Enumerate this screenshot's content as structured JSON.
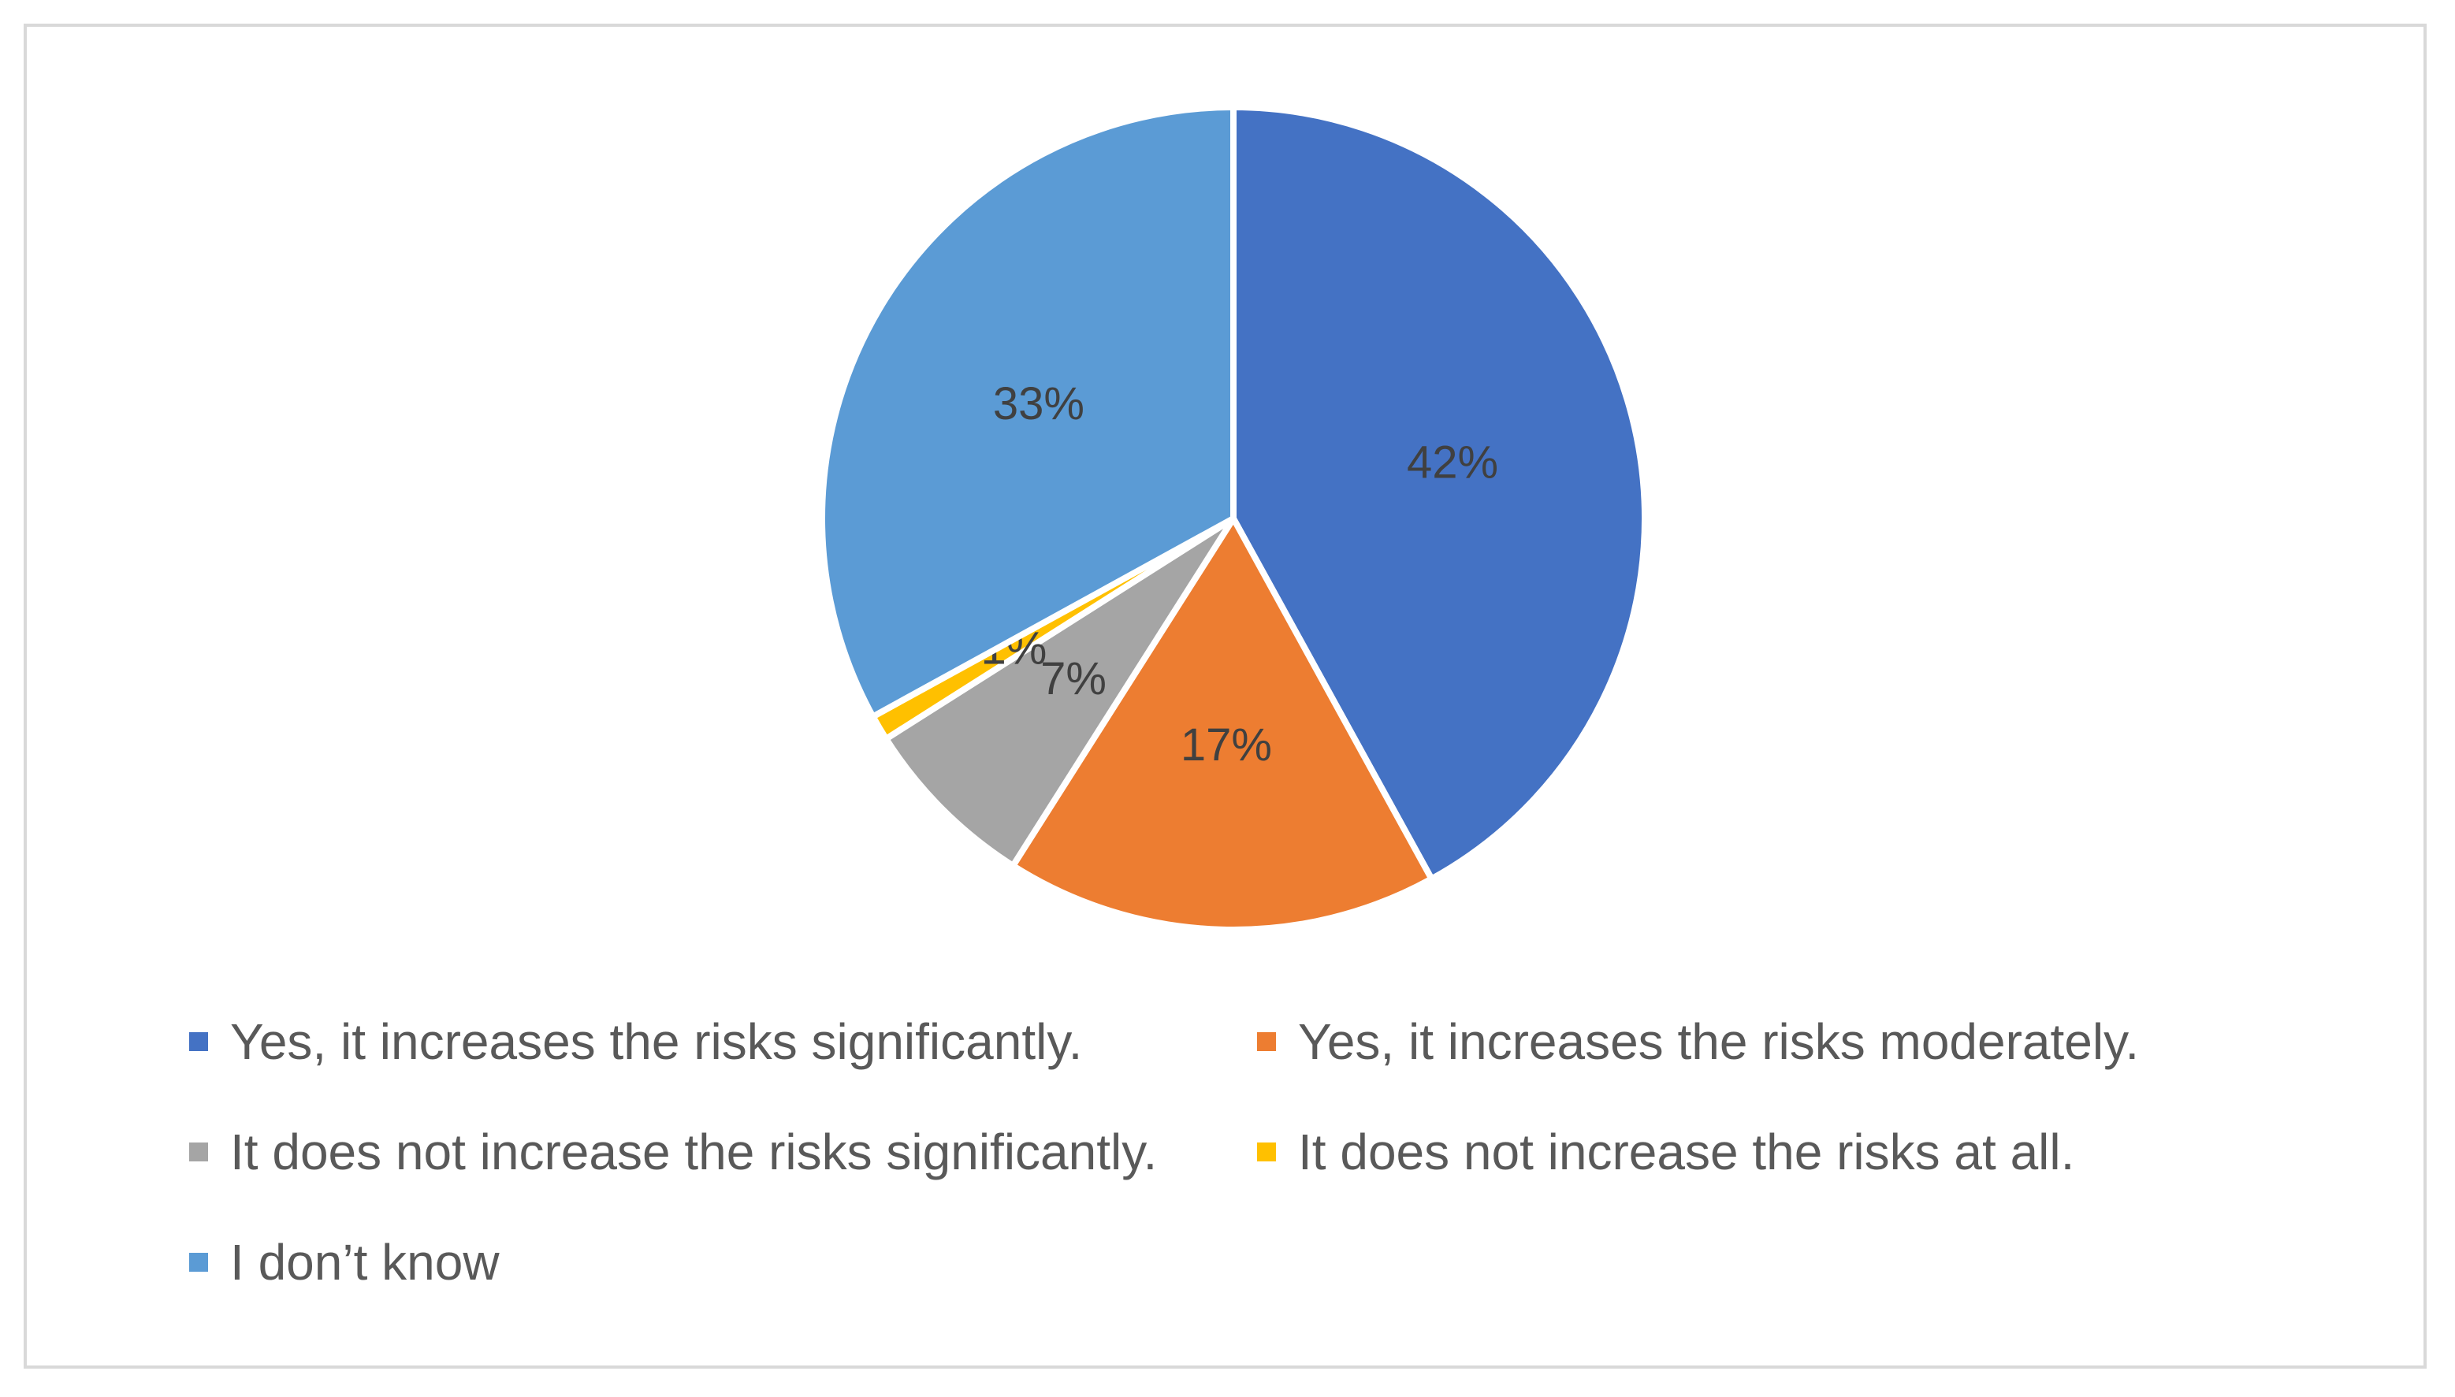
{
  "chart_data": {
    "type": "pie",
    "slices": [
      {
        "label": "Yes, it increases the risks significantly.",
        "value": 42,
        "display": "42%",
        "color": "#4472c4"
      },
      {
        "label": "Yes, it increases the risks moderately.",
        "value": 17,
        "display": "17%",
        "color": "#ed7d31"
      },
      {
        "label": "It does not increase the risks significantly.",
        "value": 7,
        "display": "7%",
        "color": "#a5a5a5"
      },
      {
        "label": "It does not increase the risks at all.",
        "value": 1,
        "display": "1%",
        "color": "#ffc000"
      },
      {
        "label": "I don’t know",
        "value": 33,
        "display": "33%",
        "color": "#5b9bd5"
      }
    ],
    "legend_position": "bottom",
    "start_angle": "top, clockwise"
  }
}
